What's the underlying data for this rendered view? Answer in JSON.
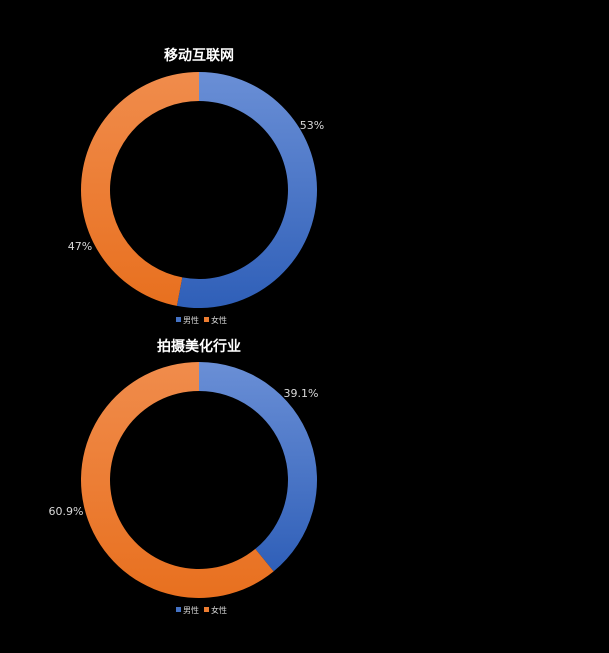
{
  "colors": {
    "male": "#4472c4",
    "female": "#ed7d31",
    "background": "#000000",
    "text": "#d9d9d9"
  },
  "chart_data": [
    {
      "type": "pie",
      "style": "doughnut",
      "title": "移动互联网",
      "categories": [
        "男性",
        "女性"
      ],
      "values": [
        53,
        47
      ],
      "data_labels": [
        "53%",
        "47%"
      ],
      "legend": [
        "男性",
        "女性"
      ],
      "legend_position": "bottom"
    },
    {
      "type": "pie",
      "style": "doughnut",
      "title": "拍摄美化行业",
      "categories": [
        "男性",
        "女性"
      ],
      "values": [
        39.1,
        60.9
      ],
      "data_labels": [
        "39.1%",
        "60.9%"
      ],
      "legend": [
        "男性",
        "女性"
      ],
      "legend_position": "bottom"
    }
  ]
}
